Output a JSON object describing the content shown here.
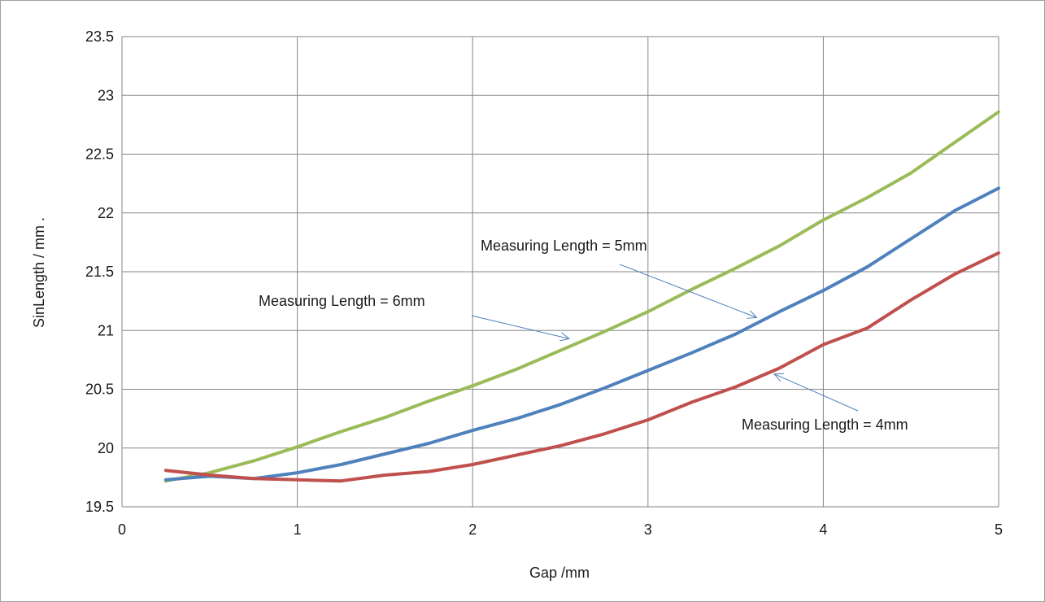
{
  "chart_data": {
    "type": "line",
    "xlabel": "Gap /mm",
    "ylabel": "SinLength  / mm  .",
    "xlim": [
      0,
      5
    ],
    "ylim": [
      19.5,
      23.5
    ],
    "xticks": [
      0,
      1,
      2,
      3,
      4,
      5
    ],
    "xtick_labels": [
      "0",
      "1",
      "2",
      "3",
      "4",
      "5"
    ],
    "yticks": [
      19.5,
      20,
      20.5,
      21,
      21.5,
      22,
      22.5,
      23,
      23.5
    ],
    "ytick_labels": [
      "19.5",
      "20",
      "20.5",
      "21",
      "21.5",
      "22",
      "22.5",
      "23",
      "23.5"
    ],
    "grid": true,
    "x": [
      0.25,
      0.5,
      0.75,
      1.0,
      1.25,
      1.5,
      1.75,
      2.0,
      2.25,
      2.5,
      2.75,
      3.0,
      3.25,
      3.5,
      3.75,
      4.0,
      4.25,
      4.5,
      4.75,
      5.0
    ],
    "series": [
      {
        "color": "#9bbb59",
        "values": [
          19.72,
          19.79,
          19.89,
          20.01,
          20.14,
          20.26,
          20.4,
          20.53,
          20.67,
          20.83,
          20.99,
          21.16,
          21.35,
          21.53,
          21.72,
          21.94,
          22.13,
          22.34,
          22.6,
          22.86
        ]
      },
      {
        "color": "#4f81bd",
        "values": [
          19.73,
          19.76,
          19.74,
          19.79,
          19.86,
          19.95,
          20.04,
          20.15,
          20.25,
          20.37,
          20.51,
          20.66,
          20.81,
          20.97,
          21.16,
          21.34,
          21.54,
          21.78,
          22.02,
          22.21
        ]
      },
      {
        "color": "#c0504d",
        "values": [
          19.81,
          19.77,
          19.74,
          19.73,
          19.72,
          19.77,
          19.8,
          19.86,
          19.94,
          20.02,
          20.12,
          20.24,
          20.39,
          20.52,
          20.68,
          20.88,
          21.02,
          21.26,
          21.48,
          21.66
        ]
      }
    ],
    "annotations": [
      {
        "text": "Measuring Length = 5mm",
        "arrow_to": [
          3.62,
          21.11
        ]
      },
      {
        "text": "Measuring Length = 6mm",
        "arrow_to": [
          2.55,
          20.93
        ]
      },
      {
        "text": "Measuring Length = 4mm",
        "arrow_to": [
          3.72,
          20.63
        ]
      }
    ]
  }
}
